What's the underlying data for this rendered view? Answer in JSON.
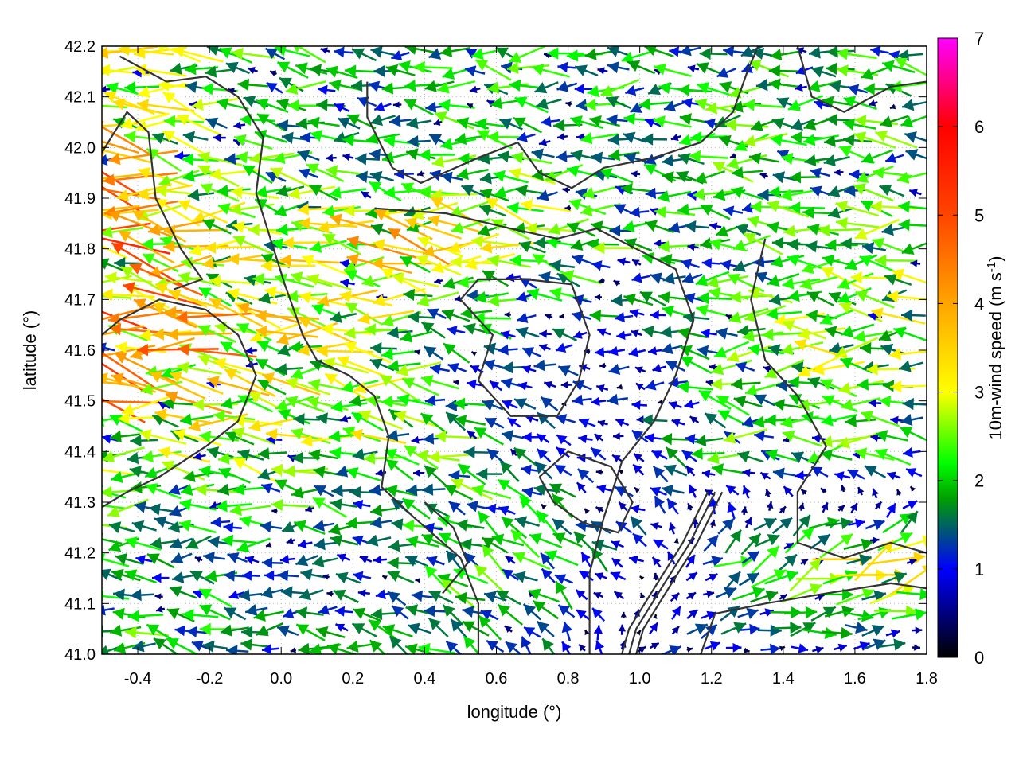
{
  "chart_data": {
    "type": "vector-field",
    "title": "",
    "xlabel": "longitude (°)",
    "ylabel": "latitude (°)",
    "xlim": [
      -0.5,
      1.8
    ],
    "ylim": [
      41.0,
      42.2
    ],
    "xticks": [
      -0.4,
      -0.2,
      0.0,
      0.2,
      0.4,
      0.6,
      0.8,
      1.0,
      1.2,
      1.4,
      1.6,
      1.8
    ],
    "xtick_labels": [
      "-0.4",
      "-0.2",
      "0.0",
      "0.2",
      "0.4",
      "0.6",
      "0.8",
      "1.0",
      "1.2",
      "1.4",
      "1.6",
      "1.8"
    ],
    "yticks": [
      41.0,
      41.1,
      41.2,
      41.3,
      41.4,
      41.5,
      41.6,
      41.7,
      41.8,
      41.9,
      42.0,
      42.1,
      42.2
    ],
    "ytick_labels": [
      "41.0",
      "41.1",
      "41.2",
      "41.3",
      "41.4",
      "41.5",
      "41.6",
      "41.7",
      "41.8",
      "41.9",
      "42.0",
      "42.1",
      "42.2"
    ],
    "grid": true,
    "colorbar": {
      "label_main": "10m-wind speed (m s",
      "label_sup": "-1",
      "label_end": ")",
      "range": [
        0,
        7
      ],
      "ticks": [
        0,
        1,
        2,
        3,
        4,
        5,
        6,
        7
      ],
      "tick_labels": [
        "0",
        "1",
        "2",
        "3",
        "4",
        "5",
        "6",
        "7"
      ],
      "colors": [
        "#000000",
        "#0000ff",
        "#00a000",
        "#00ff00",
        "#ffff00",
        "#ffa500",
        "#ff4500",
        "#ff0000",
        "#ff00ff"
      ],
      "color_stops": [
        0,
        1,
        1.8,
        2.2,
        3,
        4,
        5,
        6,
        7
      ]
    },
    "wind_field": {
      "lon": [
        -0.5,
        -0.25,
        0.0,
        0.25,
        0.5,
        0.75,
        1.0,
        1.25,
        1.5,
        1.8
      ],
      "lat": [
        42.2,
        42.0,
        41.8,
        41.6,
        41.4,
        41.2,
        41.0
      ],
      "u": [
        [
          -3.0,
          -2.5,
          -2.0,
          -1.5,
          -1.8,
          -2.0,
          -2.0,
          -2.0,
          -1.8,
          -2.0
        ],
        [
          -3.5,
          -2.5,
          -2.0,
          -1.5,
          -2.0,
          -2.0,
          -1.5,
          -2.0,
          -2.0,
          -2.0
        ],
        [
          -4.5,
          -3.0,
          -2.5,
          -3.5,
          -3.0,
          -2.5,
          -2.0,
          -2.0,
          -2.0,
          -2.5
        ],
        [
          -4.5,
          -4.0,
          -3.0,
          -2.5,
          -1.5,
          -1.0,
          -1.0,
          -2.0,
          -2.5,
          -2.5
        ],
        [
          -3.0,
          -2.5,
          -2.5,
          -2.5,
          -2.0,
          -1.0,
          -1.0,
          -2.0,
          -2.0,
          -2.0
        ],
        [
          -2.0,
          -1.5,
          -1.5,
          -1.0,
          -2.0,
          -1.5,
          -1.0,
          1.5,
          2.5,
          3.0
        ],
        [
          -2.0,
          -2.0,
          -1.5,
          -1.5,
          -1.5,
          -1.0,
          1.0,
          1.0,
          1.2,
          1.2
        ]
      ],
      "v": [
        [
          0.5,
          0.5,
          0.3,
          0.0,
          0.3,
          0.0,
          0.0,
          0.0,
          0.0,
          0.3
        ],
        [
          0.5,
          0.3,
          0.2,
          0.0,
          0.2,
          0.0,
          0.0,
          0.0,
          0.0,
          0.0
        ],
        [
          0.6,
          0.3,
          0.3,
          0.5,
          0.3,
          0.3,
          0.3,
          0.2,
          0.2,
          0.0
        ],
        [
          0.8,
          0.5,
          0.3,
          0.3,
          0.3,
          0.0,
          0.0,
          0.0,
          0.0,
          0.0
        ],
        [
          0.0,
          0.0,
          0.2,
          0.5,
          0.8,
          0.5,
          0.5,
          0.5,
          0.0,
          0.0
        ],
        [
          0.0,
          0.0,
          0.0,
          0.0,
          1.0,
          1.0,
          0.5,
          1.0,
          1.0,
          1.2
        ],
        [
          0.0,
          0.5,
          0.0,
          0.5,
          1.0,
          1.0,
          0.5,
          0.3,
          0.0,
          0.0
        ]
      ]
    },
    "contours": [
      [
        [
          -0.45,
          42.18
        ],
        [
          -0.32,
          42.13
        ],
        [
          -0.21,
          42.14
        ],
        [
          -0.12,
          42.1
        ],
        [
          -0.05,
          42.02
        ],
        [
          -0.07,
          41.91
        ],
        [
          -0.03,
          41.82
        ],
        [
          0.01,
          41.73
        ],
        [
          0.06,
          41.63
        ],
        [
          0.1,
          41.58
        ],
        [
          0.19,
          41.55
        ],
        [
          0.26,
          41.51
        ],
        [
          0.3,
          41.43
        ],
        [
          0.28,
          41.33
        ],
        [
          0.37,
          41.27
        ],
        [
          0.5,
          41.19
        ],
        [
          0.55,
          41.1
        ],
        [
          0.55,
          41.0
        ]
      ],
      [
        [
          -0.5,
          41.63
        ],
        [
          -0.45,
          41.66
        ],
        [
          -0.34,
          41.7
        ],
        [
          -0.21,
          41.68
        ],
        [
          -0.12,
          41.63
        ],
        [
          -0.07,
          41.55
        ],
        [
          -0.12,
          41.46
        ],
        [
          -0.21,
          41.41
        ],
        [
          -0.34,
          41.35
        ],
        [
          -0.43,
          41.32
        ],
        [
          -0.5,
          41.29
        ]
      ],
      [
        [
          0.26,
          41.88
        ],
        [
          0.46,
          41.87
        ],
        [
          0.64,
          41.84
        ],
        [
          0.77,
          41.82
        ],
        [
          0.88,
          41.84
        ],
        [
          0.99,
          41.8
        ],
        [
          1.1,
          41.76
        ],
        [
          1.15,
          41.66
        ],
        [
          1.1,
          41.55
        ],
        [
          1.04,
          41.46
        ],
        [
          0.95,
          41.38
        ],
        [
          0.9,
          41.27
        ],
        [
          0.86,
          41.16
        ],
        [
          0.86,
          41.0
        ]
      ],
      [
        [
          0.5,
          41.7
        ],
        [
          0.59,
          41.63
        ],
        [
          0.55,
          41.54
        ],
        [
          0.64,
          41.47
        ],
        [
          0.77,
          41.47
        ],
        [
          0.83,
          41.54
        ],
        [
          0.86,
          41.63
        ],
        [
          0.81,
          41.73
        ],
        [
          0.68,
          41.74
        ],
        [
          0.55,
          41.74
        ],
        [
          0.5,
          41.7
        ]
      ],
      [
        [
          0.24,
          42.13
        ],
        [
          0.24,
          42.06
        ],
        [
          0.31,
          41.96
        ],
        [
          0.39,
          41.93
        ],
        [
          0.55,
          41.98
        ],
        [
          0.66,
          42.01
        ],
        [
          0.72,
          41.95
        ],
        [
          0.81,
          41.92
        ],
        [
          0.9,
          41.96
        ],
        [
          1.04,
          41.98
        ],
        [
          1.17,
          42.01
        ],
        [
          1.26,
          42.07
        ],
        [
          1.3,
          42.15
        ],
        [
          1.33,
          42.2
        ]
      ],
      [
        [
          1.35,
          41.82
        ],
        [
          1.31,
          41.7
        ],
        [
          1.35,
          41.58
        ],
        [
          1.44,
          41.51
        ],
        [
          1.52,
          41.41
        ],
        [
          1.44,
          41.32
        ],
        [
          1.44,
          41.22
        ],
        [
          1.57,
          41.19
        ],
        [
          1.7,
          41.22
        ],
        [
          1.8,
          41.2
        ]
      ],
      [
        [
          1.19,
          41.32
        ],
        [
          1.12,
          41.22
        ],
        [
          1.04,
          41.13
        ],
        [
          0.97,
          41.05
        ],
        [
          0.95,
          41.0
        ]
      ],
      [
        [
          1.21,
          41.32
        ],
        [
          1.14,
          41.22
        ],
        [
          1.06,
          41.13
        ],
        [
          0.99,
          41.05
        ],
        [
          0.97,
          41.0
        ]
      ],
      [
        [
          1.23,
          41.32
        ],
        [
          1.16,
          41.22
        ],
        [
          1.08,
          41.13
        ],
        [
          1.01,
          41.05
        ],
        [
          0.99,
          41.0
        ]
      ],
      [
        [
          1.17,
          41.0
        ],
        [
          1.21,
          41.08
        ],
        [
          1.35,
          41.1
        ],
        [
          1.52,
          41.12
        ],
        [
          1.7,
          41.14
        ],
        [
          1.8,
          41.13
        ]
      ],
      [
        [
          1.44,
          42.2
        ],
        [
          1.48,
          42.1
        ],
        [
          1.57,
          42.07
        ],
        [
          1.7,
          42.12
        ],
        [
          1.8,
          42.13
        ]
      ],
      [
        [
          -0.5,
          41.99
        ],
        [
          -0.43,
          42.07
        ],
        [
          -0.37,
          42.03
        ],
        [
          -0.35,
          41.9
        ],
        [
          -0.28,
          41.8
        ],
        [
          -0.22,
          41.74
        ],
        [
          -0.3,
          41.72
        ]
      ],
      [
        [
          0.4,
          41.3
        ],
        [
          0.48,
          41.25
        ],
        [
          0.52,
          41.18
        ],
        [
          0.45,
          41.12
        ]
      ],
      [
        [
          0.72,
          41.35
        ],
        [
          0.8,
          41.4
        ],
        [
          0.92,
          41.37
        ],
        [
          0.98,
          41.3
        ],
        [
          0.94,
          41.24
        ],
        [
          0.84,
          41.26
        ],
        [
          0.76,
          41.3
        ],
        [
          0.72,
          41.35
        ]
      ]
    ]
  }
}
